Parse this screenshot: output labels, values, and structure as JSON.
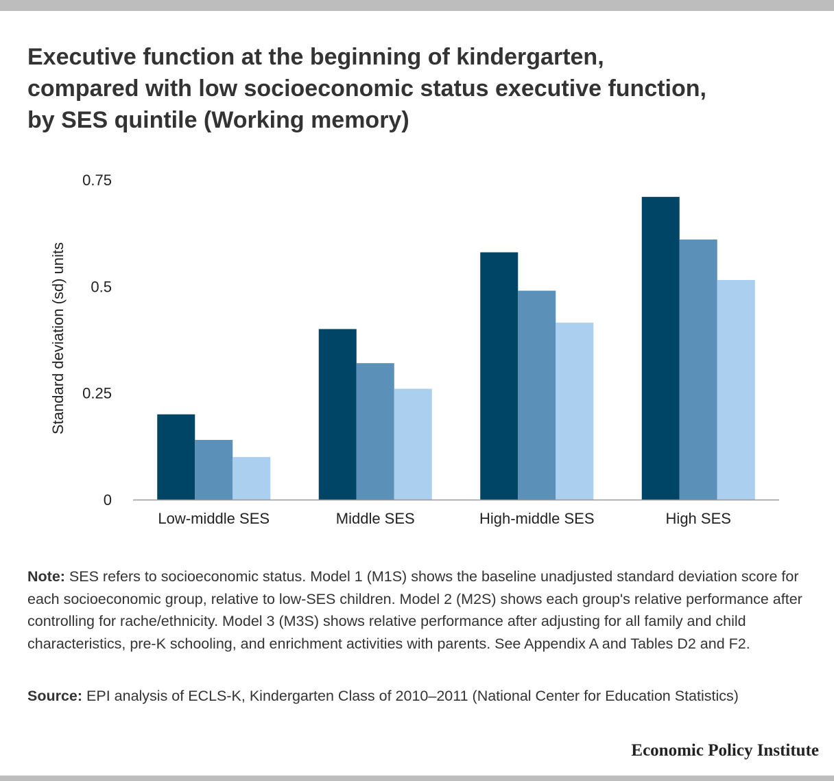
{
  "title_lines": [
    "Executive function at the beginning of kindergarten,",
    "compared with low socioeconomic status executive function,",
    "by SES quintile (Working memory)"
  ],
  "chart_data": {
    "type": "bar",
    "ylabel": "Standard deviation (sd) units",
    "xlabel": "",
    "ylim": [
      0,
      0.75
    ],
    "yticks": [
      {
        "value": 0,
        "label": "0"
      },
      {
        "value": 0.25,
        "label": "0.25"
      },
      {
        "value": 0.5,
        "label": "0.5"
      },
      {
        "value": 0.75,
        "label": "0.75"
      }
    ],
    "grid": false,
    "legend": "none",
    "categories": [
      "Low-middle SES",
      "Middle SES",
      "High-middle SES",
      "High SES"
    ],
    "series": [
      {
        "color": "#004466",
        "values": [
          0.2,
          0.4,
          0.58,
          0.71
        ]
      },
      {
        "color": "#5b91b8",
        "values": [
          0.14,
          0.32,
          0.49,
          0.61
        ]
      },
      {
        "color": "#aacfef",
        "values": [
          0.1,
          0.26,
          0.415,
          0.515
        ]
      }
    ]
  },
  "note": {
    "lead": "Note:",
    "text": " SES refers to socioeconomic status. Model 1 (M1S) shows the baseline unadjusted standard deviation score for each socioeconomic group, relative to low-SES children. Model 2 (M2S) shows each group's relative performance after controlling for rache/ethnicity. Model 3 (M3S) shows relative performance after adjusting for all family and child characteristics, pre-K schooling, and enrichment activities with parents. See Appendix A and Tables D2 and F2."
  },
  "source": {
    "lead": "Source:",
    "text": " EPI analysis of ECLS-K, Kindergarten Class of 2010–2011 (National Center for Education Statistics)"
  },
  "footer": {
    "brand": "Economic Policy Institute"
  }
}
